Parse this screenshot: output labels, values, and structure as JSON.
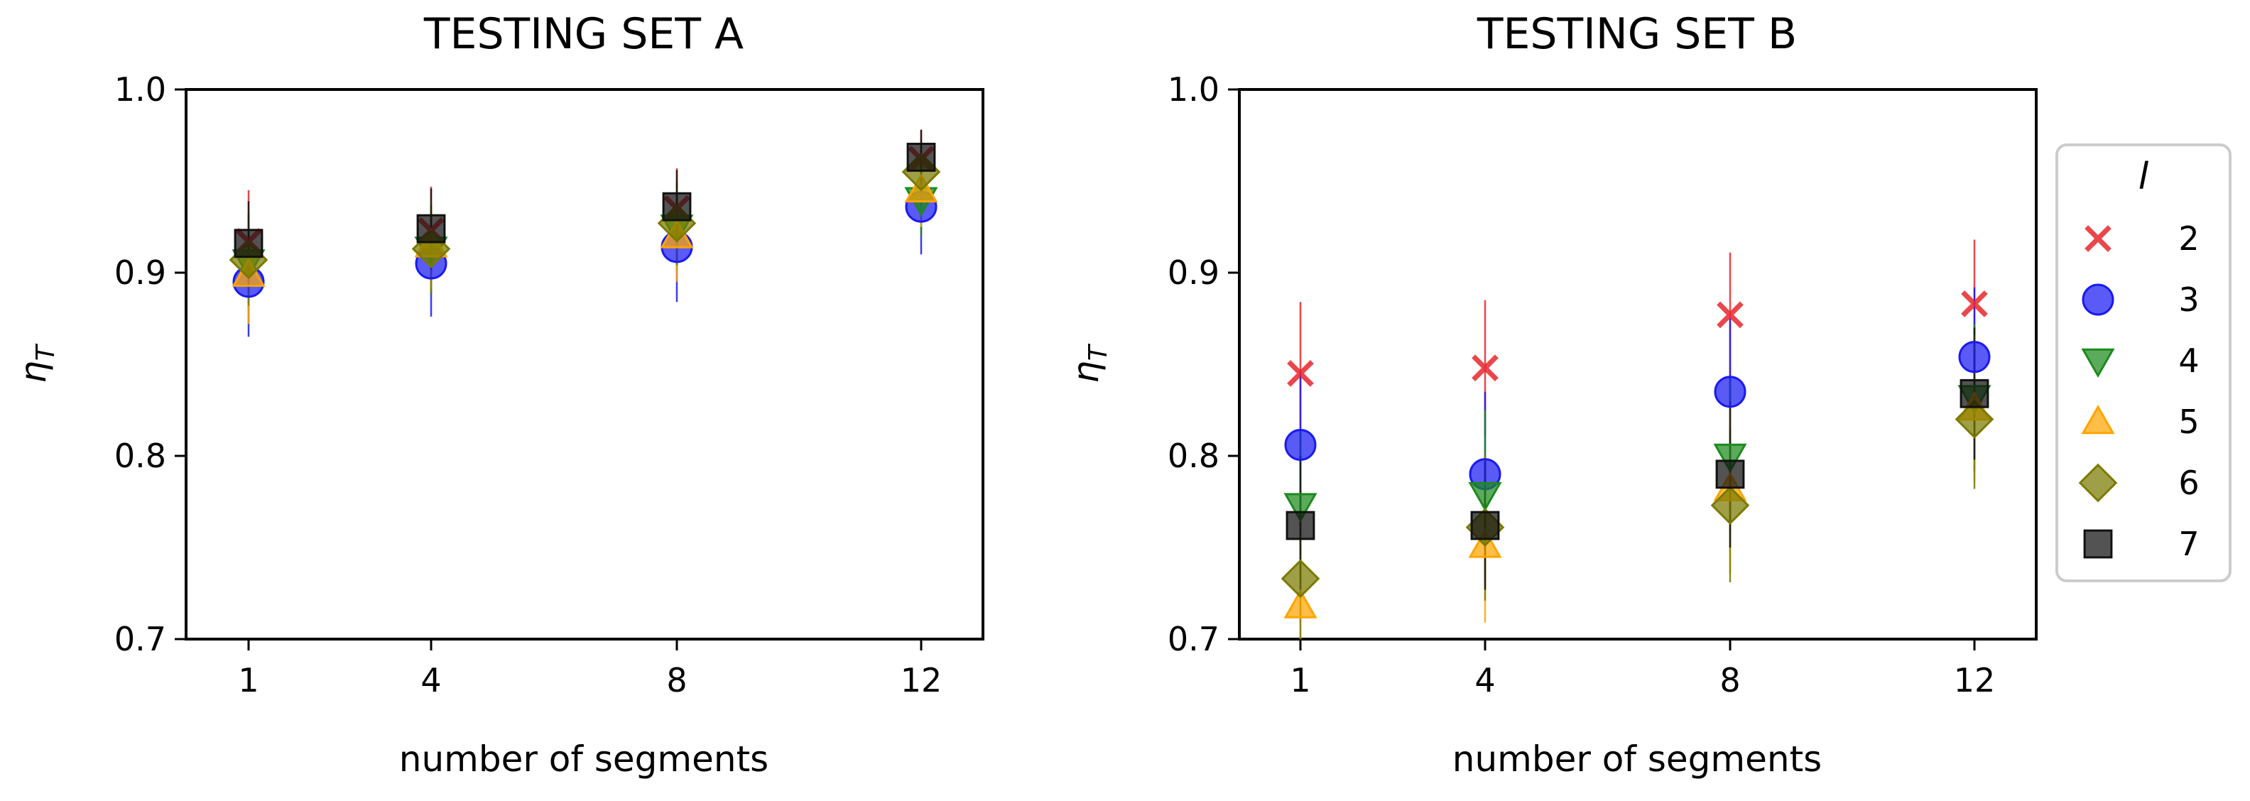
{
  "chart_data": [
    {
      "type": "scatter",
      "title": "TESTING SET A",
      "xlabel": "number of segments",
      "ylabel": "η",
      "ylabel_sub": "T",
      "categories": [
        "1",
        "4",
        "8",
        "12"
      ],
      "yticks": [
        "0.7",
        "0.8",
        "0.9",
        "1.0"
      ],
      "ylim": [
        0.7,
        1.0
      ],
      "series": [
        {
          "name": "2",
          "values": [
            0.917,
            0.923,
            0.935,
            0.962
          ],
          "err": [
            0.028,
            0.024,
            0.022,
            0.016
          ]
        },
        {
          "name": "3",
          "values": [
            0.895,
            0.905,
            0.914,
            0.936
          ],
          "err": [
            0.03,
            0.029,
            0.03,
            0.026
          ]
        },
        {
          "name": "4",
          "values": [
            0.906,
            0.913,
            0.925,
            0.94
          ],
          "err": [
            0.026,
            0.025,
            0.024,
            0.02
          ]
        },
        {
          "name": "5",
          "values": [
            0.899,
            0.915,
            0.92,
            0.945
          ],
          "err": [
            0.027,
            0.024,
            0.025,
            0.02
          ]
        },
        {
          "name": "6",
          "values": [
            0.907,
            0.913,
            0.927,
            0.955
          ],
          "err": [
            0.025,
            0.024,
            0.023,
            0.018
          ]
        },
        {
          "name": "7",
          "values": [
            0.916,
            0.924,
            0.936,
            0.963
          ],
          "err": [
            0.023,
            0.022,
            0.02,
            0.015
          ]
        }
      ]
    },
    {
      "type": "scatter",
      "title": "TESTING SET B",
      "xlabel": "number of segments",
      "ylabel": "η",
      "ylabel_sub": "T",
      "categories": [
        "1",
        "4",
        "8",
        "12"
      ],
      "yticks": [
        "0.7",
        "0.8",
        "0.9",
        "1.0"
      ],
      "ylim": [
        0.7,
        1.0
      ],
      "series": [
        {
          "name": "2",
          "values": [
            0.845,
            0.848,
            0.877,
            0.883
          ],
          "err": [
            0.039,
            0.037,
            0.034,
            0.035
          ]
        },
        {
          "name": "3",
          "values": [
            0.806,
            0.79,
            0.835,
            0.854
          ],
          "err": [
            0.04,
            0.045,
            0.04,
            0.038
          ]
        },
        {
          "name": "4",
          "values": [
            0.773,
            0.779,
            0.8,
            0.832
          ],
          "err": [
            0.04,
            0.046,
            0.042,
            0.04
          ]
        },
        {
          "name": "5",
          "values": [
            0.718,
            0.751,
            0.782,
            0.826
          ],
          "err": [
            0.03,
            0.042,
            0.046,
            0.04
          ]
        },
        {
          "name": "6",
          "values": [
            0.733,
            0.761,
            0.773,
            0.82
          ],
          "err": [
            0.035,
            0.04,
            0.042,
            0.038
          ]
        },
        {
          "name": "7",
          "values": [
            0.762,
            0.762,
            0.79,
            0.834
          ],
          "err": [
            0.038,
            0.035,
            0.04,
            0.036
          ]
        }
      ]
    }
  ],
  "legend": {
    "title": "l",
    "placement": "outside-right",
    "entries": [
      {
        "label": "2",
        "marker": "x",
        "color": "#e8262c"
      },
      {
        "label": "3",
        "marker": "circle",
        "color": "#1a1af2"
      },
      {
        "label": "4",
        "marker": "triangle-down",
        "color": "#1d8a1d"
      },
      {
        "label": "5",
        "marker": "triangle-up",
        "color": "#ffa500"
      },
      {
        "label": "6",
        "marker": "diamond",
        "color": "#7a7a00"
      },
      {
        "label": "7",
        "marker": "square",
        "color": "#111111"
      }
    ]
  }
}
